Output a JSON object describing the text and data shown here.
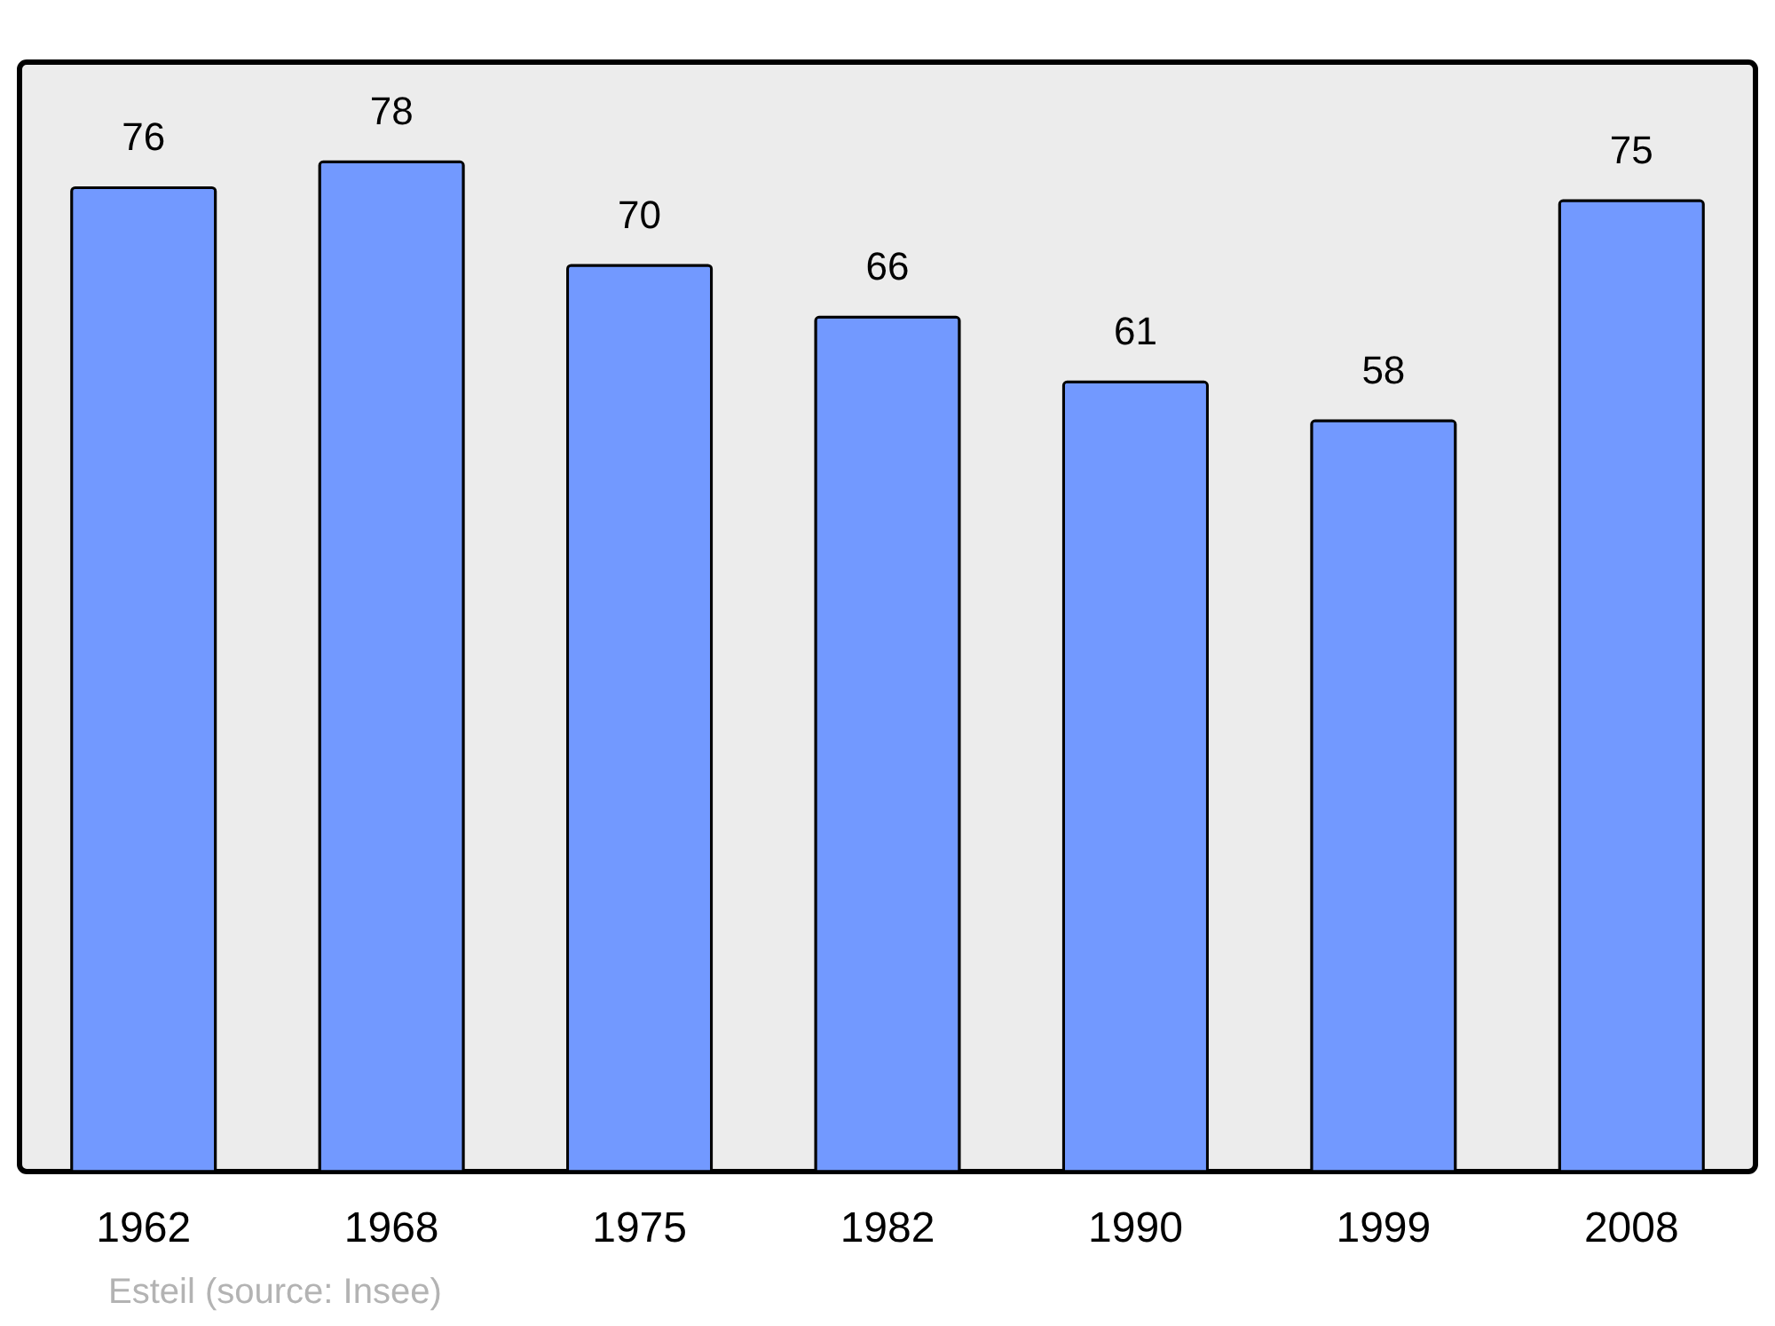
{
  "chart_data": {
    "type": "bar",
    "categories": [
      "1962",
      "1968",
      "1975",
      "1982",
      "1990",
      "1999",
      "2008"
    ],
    "values": [
      76,
      78,
      70,
      66,
      61,
      58,
      75
    ],
    "color": "#7299ff",
    "ylim": [
      0,
      85.7
    ],
    "data_labels": true,
    "annotations": [
      "Esteil    (source: Insee)"
    ]
  }
}
